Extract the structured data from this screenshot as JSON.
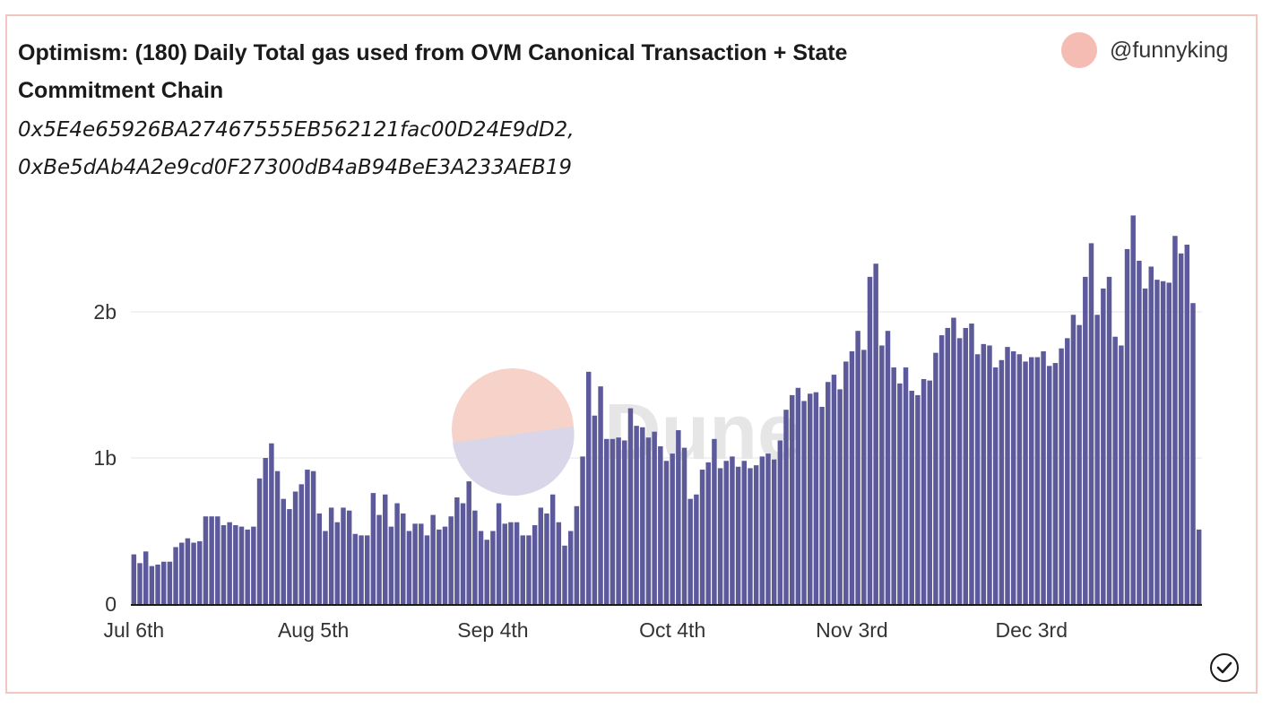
{
  "header": {
    "title": "Optimism: (180) Daily Total gas used from OVM Canonical Transaction + State Commitment Chain",
    "subtitle_lines": [
      "0x5E4e65926BA27467555EB562121fac00D24E9dD2,",
      "0xBe5dAb4A2e9cd0F27300dB4aB94BeE3A233AEB19"
    ],
    "author": "@funnyking"
  },
  "watermark": {
    "text": "Dune"
  },
  "colors": {
    "bar": "#5d5a9c",
    "avatar": "#f4bcb2",
    "border": "#f2c7c0",
    "watermark_top": "#f6d2c9",
    "watermark_bottom": "#d8d6e8"
  },
  "icons": {
    "status": "check-circle-icon"
  },
  "chart_data": {
    "type": "bar",
    "title": "Optimism: (180) Daily Total gas used from OVM Canonical Transaction + State Commitment Chain",
    "xlabel": "",
    "ylabel": "",
    "x_tick_labels": [
      "Jul 6th",
      "Aug 5th",
      "Sep 4th",
      "Oct 4th",
      "Nov 3rd",
      "Dec 3rd"
    ],
    "x_tick_day_index": [
      0,
      30,
      60,
      90,
      120,
      150
    ],
    "y_tick_labels": [
      "0",
      "1b",
      "2b"
    ],
    "y_tick_values": [
      0,
      1,
      2
    ],
    "y_unit": "billions",
    "ylim": [
      0,
      2.7
    ],
    "grid": "horizontal",
    "legend": "none",
    "values": [
      0.34,
      0.28,
      0.36,
      0.26,
      0.27,
      0.29,
      0.29,
      0.39,
      0.42,
      0.45,
      0.42,
      0.43,
      0.6,
      0.6,
      0.6,
      0.54,
      0.56,
      0.54,
      0.53,
      0.51,
      0.53,
      0.86,
      1.0,
      1.1,
      0.91,
      0.72,
      0.65,
      0.77,
      0.82,
      0.92,
      0.91,
      0.62,
      0.5,
      0.66,
      0.56,
      0.66,
      0.64,
      0.48,
      0.47,
      0.47,
      0.76,
      0.61,
      0.75,
      0.53,
      0.69,
      0.62,
      0.5,
      0.55,
      0.55,
      0.47,
      0.61,
      0.51,
      0.53,
      0.6,
      0.73,
      0.69,
      0.84,
      0.64,
      0.5,
      0.44,
      0.5,
      0.69,
      0.55,
      0.56,
      0.56,
      0.47,
      0.47,
      0.54,
      0.66,
      0.62,
      0.75,
      0.56,
      0.4,
      0.5,
      0.67,
      1.01,
      1.59,
      1.29,
      1.49,
      1.13,
      1.13,
      1.14,
      1.12,
      1.34,
      1.22,
      1.21,
      1.14,
      1.18,
      1.08,
      0.98,
      1.03,
      1.19,
      1.07,
      0.72,
      0.75,
      0.92,
      0.97,
      1.13,
      0.93,
      0.98,
      1.01,
      0.94,
      0.98,
      0.93,
      0.95,
      1.01,
      1.03,
      0.99,
      1.12,
      1.33,
      1.43,
      1.48,
      1.39,
      1.44,
      1.45,
      1.35,
      1.52,
      1.57,
      1.47,
      1.66,
      1.73,
      1.87,
      1.74,
      2.24,
      2.33,
      1.77,
      1.87,
      1.62,
      1.51,
      1.62,
      1.46,
      1.43,
      1.54,
      1.53,
      1.72,
      1.84,
      1.89,
      1.96,
      1.82,
      1.89,
      1.92,
      1.71,
      1.78,
      1.77,
      1.62,
      1.67,
      1.76,
      1.73,
      1.71,
      1.66,
      1.69,
      1.69,
      1.73,
      1.63,
      1.65,
      1.75,
      1.82,
      1.98,
      1.91,
      2.24,
      2.47,
      1.98,
      2.16,
      2.24,
      1.83,
      1.77,
      2.43,
      2.66,
      2.35,
      2.16,
      2.31,
      2.22,
      2.21,
      2.2,
      2.52,
      2.4,
      2.46,
      2.06,
      0.51
    ]
  }
}
